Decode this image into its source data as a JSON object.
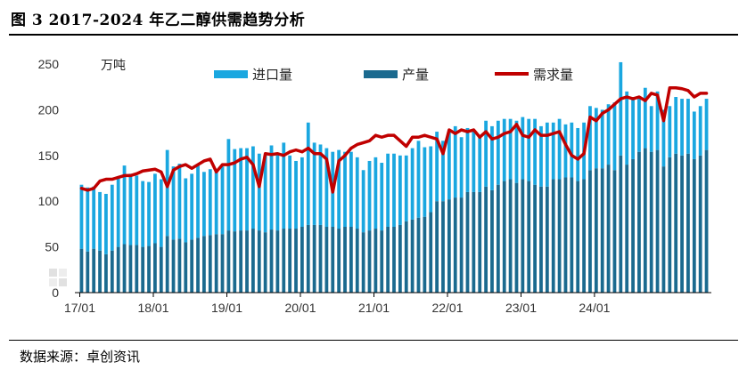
{
  "title": "图 3 2017-2024 年乙二醇供需趋势分析",
  "source": "数据来源：卓创资讯",
  "colors": {
    "production": "#1b6a8f",
    "import": "#1aa7e0",
    "demand": "#c00000"
  },
  "chart_data": {
    "type": "bar",
    "stacked": true,
    "unit": "万吨",
    "ylim": [
      0,
      250
    ],
    "yticks": [
      0,
      50,
      100,
      150,
      200,
      250
    ],
    "x_tick_labels": [
      "17/01",
      "18/01",
      "19/01",
      "20/01",
      "21/01",
      "22/01",
      "23/01",
      "24/01"
    ],
    "months_per_tick": 12,
    "grid": false,
    "legend": "top",
    "series": [
      {
        "name": "进口量",
        "kind": "bar-top",
        "values": [
          70,
          70,
          68,
          64,
          66,
          72,
          76,
          86,
          78,
          76,
          72,
          70,
          76,
          74,
          94,
          80,
          82,
          70,
          72,
          80,
          70,
          72,
          70,
          74,
          100,
          90,
          90,
          90,
          90,
          84,
          84,
          92,
          84,
          94,
          80,
          74,
          76,
          112,
          90,
          88,
          86,
          82,
          86,
          82,
          82,
          78,
          68,
          76,
          78,
          74,
          80,
          80,
          76,
          72,
          78,
          84,
          76,
          72,
          76,
          66,
          76,
          78,
          66,
          70,
          68,
          62,
          72,
          70,
          70,
          68,
          66,
          68,
          68,
          68,
          72,
          66,
          70,
          62,
          66,
          58,
          60,
          58,
          62,
          70,
          66,
          64,
          66,
          74,
          102,
          80,
          68,
          58,
          66,
          50,
          64,
          62,
          56,
          62,
          62,
          60,
          52,
          54,
          56
        ]
      },
      {
        "name": "产量",
        "kind": "bar-base",
        "values": [
          48,
          45,
          48,
          46,
          42,
          46,
          50,
          53,
          52,
          52,
          50,
          51,
          54,
          50,
          62,
          58,
          59,
          55,
          58,
          60,
          62,
          63,
          64,
          64,
          68,
          67,
          68,
          68,
          70,
          68,
          66,
          69,
          68,
          70,
          70,
          70,
          72,
          74,
          74,
          74,
          72,
          72,
          70,
          72,
          72,
          70,
          66,
          68,
          70,
          68,
          72,
          72,
          74,
          78,
          80,
          82,
          83,
          88,
          100,
          100,
          102,
          104,
          104,
          110,
          110,
          110,
          116,
          112,
          118,
          122,
          124,
          120,
          124,
          122,
          118,
          116,
          116,
          124,
          124,
          126,
          126,
          122,
          124,
          134,
          136,
          136,
          140,
          134,
          150,
          140,
          146,
          154,
          158,
          154,
          156,
          138,
          148,
          152,
          150,
          152,
          146,
          150,
          156
        ]
      },
      {
        "name": "需求量",
        "kind": "line",
        "values": [
          114,
          112,
          114,
          122,
          124,
          124,
          126,
          128,
          128,
          130,
          133,
          134,
          135,
          132,
          116,
          134,
          138,
          140,
          136,
          140,
          144,
          146,
          132,
          140,
          140,
          142,
          146,
          148,
          140,
          116,
          152,
          151,
          152,
          150,
          154,
          156,
          154,
          158,
          152,
          152,
          146,
          110,
          144,
          150,
          158,
          162,
          164,
          166,
          172,
          170,
          172,
          172,
          166,
          160,
          170,
          170,
          172,
          170,
          168,
          152,
          178,
          174,
          178,
          176,
          178,
          170,
          176,
          168,
          170,
          174,
          176,
          184,
          172,
          170,
          178,
          172,
          172,
          174,
          176,
          162,
          150,
          146,
          152,
          192,
          188,
          196,
          200,
          206,
          212,
          214,
          212,
          214,
          210,
          218,
          216,
          188,
          224,
          224,
          223,
          221,
          214,
          218,
          218
        ]
      }
    ]
  }
}
